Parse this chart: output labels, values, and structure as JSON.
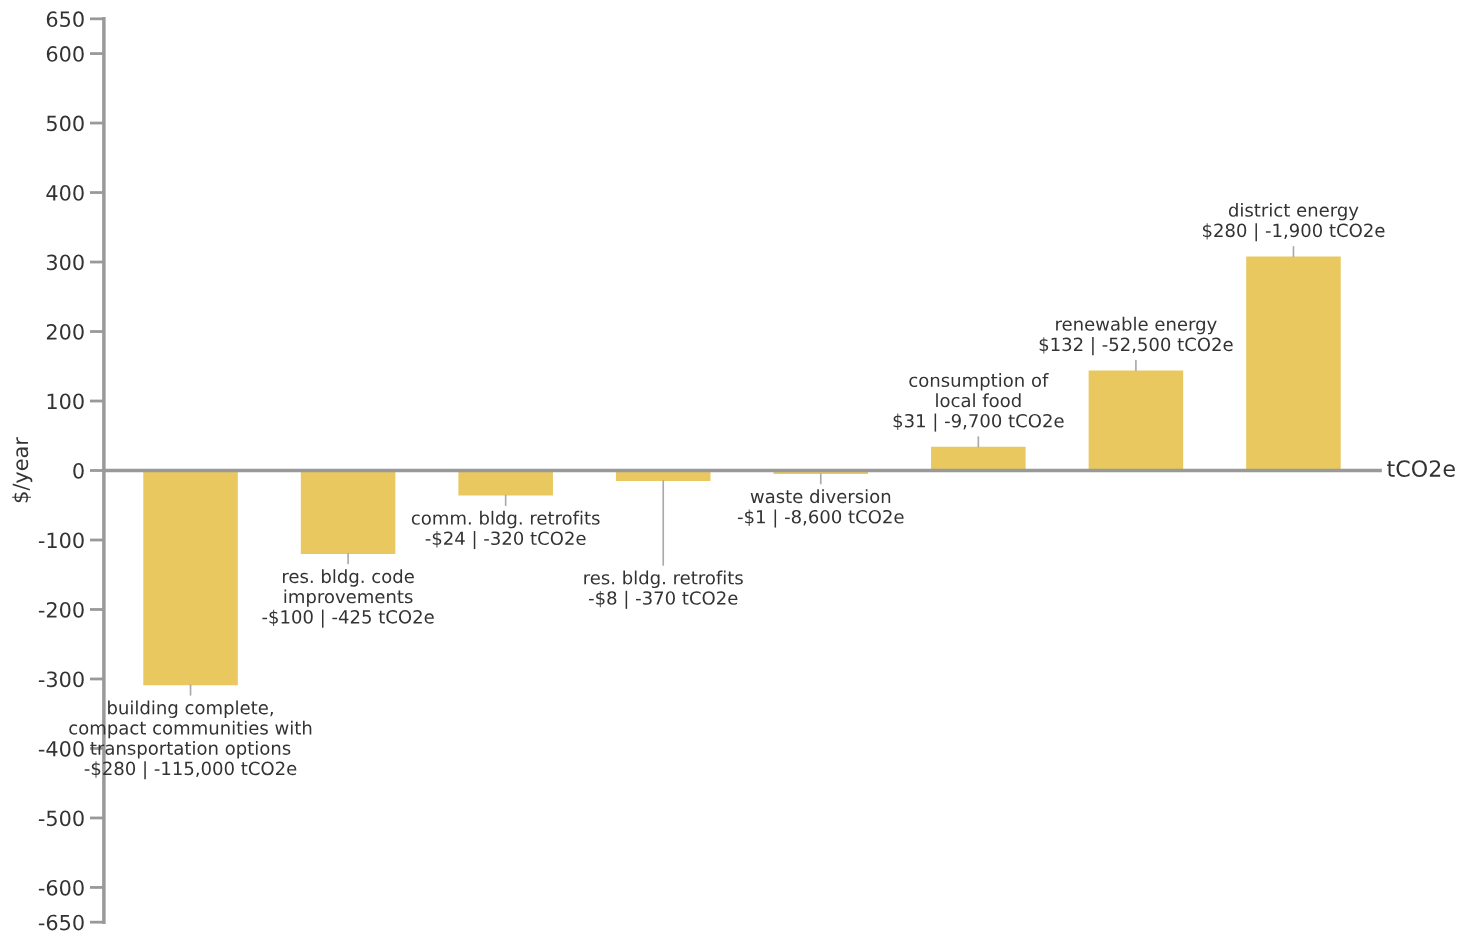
{
  "chart_data": {
    "type": "bar",
    "ylabel": "$/year",
    "xlabel": "tCO2e",
    "categories": [
      null,
      null,
      null,
      null,
      null,
      null,
      null,
      null
    ],
    "values": [
      -309,
      -120,
      -36,
      -15,
      -5,
      34,
      144,
      308
    ],
    "color": "#e8c85f",
    "value_labels": [
      "building complete,\ncompact communities with\ntransportation options\n-$280 | -115,000 tCO2e",
      "res. bldg. code\nimprovements\n-$100 | -425 tCO2e",
      "comm. bldg. retrofits\n-$24 | -320 tCO2e",
      "res. bldg. retrofits\n-$8 | -370 tCO2e",
      "waste diversion\n-$1 | -8,600 tCO2e",
      "consumption of\nlocal food\n$31 | -9,700 tCO2e",
      "renewable energy\n$132 | -52,500 tCO2e",
      "district energy\n$280 | -1,900 tCO2e"
    ],
    "ylim": [
      -650,
      650
    ],
    "yticks": [
      -650,
      -600,
      -500,
      -400,
      -300,
      -200,
      -100,
      0,
      100,
      200,
      300,
      400,
      500,
      600,
      650
    ],
    "line_style": "solid"
  }
}
